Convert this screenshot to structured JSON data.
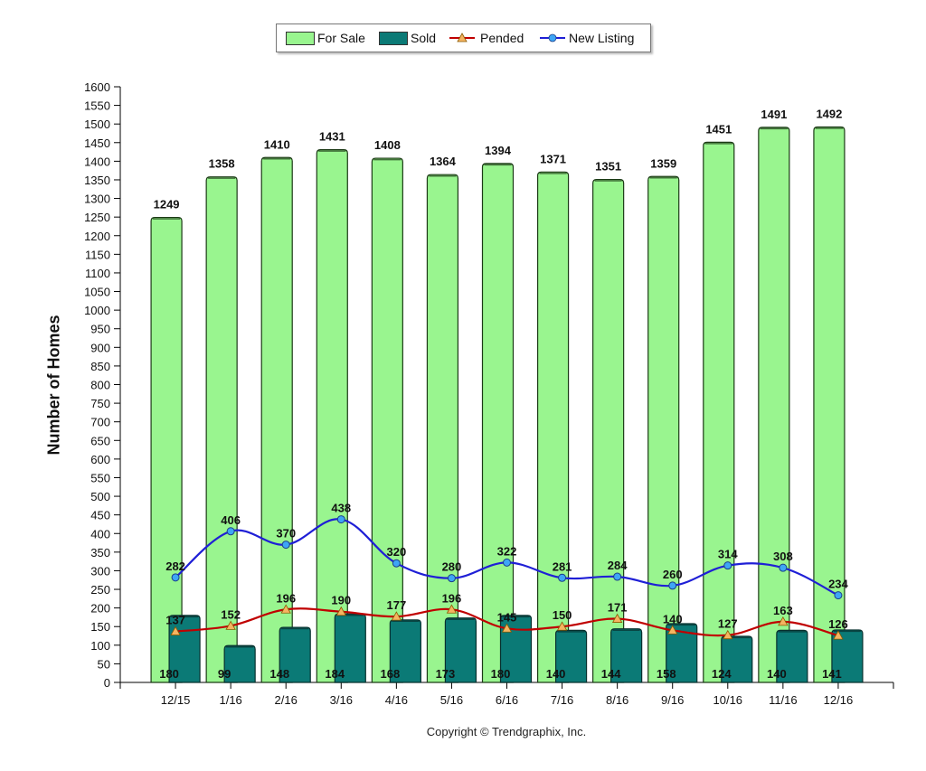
{
  "chart_data": {
    "type": "bar",
    "categories": [
      "12/15",
      "1/16",
      "2/16",
      "3/16",
      "4/16",
      "5/16",
      "6/16",
      "7/16",
      "8/16",
      "9/16",
      "10/16",
      "11/16",
      "12/16"
    ],
    "series": [
      {
        "name": "For Sale",
        "kind": "bar",
        "color": "#99f58f",
        "values": [
          1249,
          1358,
          1410,
          1431,
          1408,
          1364,
          1394,
          1371,
          1351,
          1359,
          1451,
          1491,
          1492
        ]
      },
      {
        "name": "Sold",
        "kind": "bar",
        "color": "#0b7a76",
        "values": [
          180,
          99,
          148,
          184,
          168,
          173,
          180,
          140,
          144,
          158,
          124,
          140,
          141
        ]
      },
      {
        "name": "Pended",
        "kind": "line",
        "color": "#c00000",
        "marker": "triangle",
        "marker_color": "#f5b461",
        "values": [
          137,
          152,
          196,
          190,
          177,
          196,
          145,
          150,
          171,
          140,
          127,
          163,
          126
        ]
      },
      {
        "name": "New Listing",
        "kind": "line",
        "color": "#1f1fd6",
        "marker": "circle",
        "marker_color": "#3ea6f5",
        "values": [
          282,
          406,
          370,
          438,
          320,
          280,
          322,
          281,
          284,
          260,
          314,
          308,
          234
        ]
      }
    ],
    "ylabel": "Number of Homes",
    "xlabel": "",
    "ylim": [
      0,
      1600
    ],
    "ytick_step": 50,
    "grid": false,
    "legend_position": "top-center"
  },
  "footer": {
    "copyright": "Copyright © Trendgraphix, Inc."
  }
}
